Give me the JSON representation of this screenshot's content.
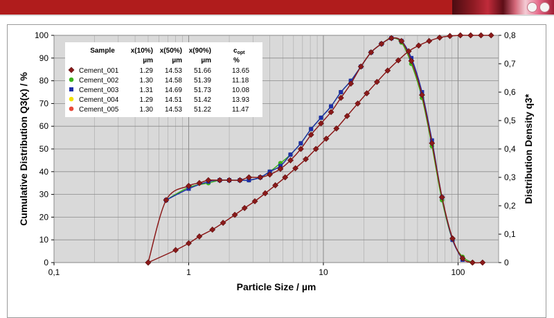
{
  "colors": {
    "header_bar": "#b01c1c",
    "plot_bg": "#d9d9d9",
    "series": [
      "#8b1a1a",
      "#3cb21c",
      "#1f2fa8",
      "#f2e000",
      "#e84a3a"
    ],
    "markers": [
      "diamond",
      "circle",
      "square",
      "circle",
      "circle"
    ]
  },
  "chart_data": {
    "type": "line",
    "xlabel": "Particle Size / µm",
    "ylabel_left": "Cumulative Distribution Q3(x) / %",
    "ylabel_right": "Distribution Density q3*",
    "x_scale": "log",
    "xlim": [
      0.1,
      200
    ],
    "ylim_left": [
      0,
      100
    ],
    "ylim_right": [
      0,
      0.8
    ],
    "x_tick_labels": [
      "0,1",
      "1",
      "10",
      "100"
    ],
    "y_left_tick_labels": [
      "0",
      "10",
      "20",
      "30",
      "40",
      "50",
      "60",
      "70",
      "80",
      "90",
      "100"
    ],
    "y_right_tick_labels": [
      "0",
      "0,1",
      "0,2",
      "0,3",
      "0,4",
      "0,5",
      "0,6",
      "0,7",
      "0,8"
    ],
    "grid": true,
    "legend_table": {
      "headers": [
        "Sample",
        "x(10%)",
        "x(50%)",
        "x(90%)",
        "c"
      ],
      "header_sub": "opt",
      "units": [
        "",
        "µm",
        "µm",
        "µm",
        "%"
      ],
      "rows": [
        [
          "Cement_001",
          "1.29",
          "14.53",
          "51.66",
          "13.65"
        ],
        [
          "Cement_002",
          "1.30",
          "14.58",
          "51.39",
          "11.18"
        ],
        [
          "Cement_003",
          "1.31",
          "14.69",
          "51.73",
          "10.08"
        ],
        [
          "Cement_004",
          "1.29",
          "14.51",
          "51.42",
          "13.93"
        ],
        [
          "Cement_005",
          "1.30",
          "14.53",
          "51.22",
          "11.47"
        ]
      ]
    },
    "cumulative_q3": {
      "axis": "left",
      "x": [
        0.5,
        0.8,
        1.0,
        1.2,
        1.5,
        1.8,
        2.2,
        2.6,
        3.1,
        3.7,
        4.4,
        5.2,
        6.2,
        7.4,
        8.8,
        10.5,
        12.5,
        15,
        18,
        21,
        25,
        30,
        36,
        43,
        51,
        61,
        73,
        87,
        104,
        124,
        148,
        176
      ],
      "y": [
        0,
        5.5,
        8.5,
        11.5,
        14.5,
        17.5,
        21,
        24,
        27,
        30.5,
        34,
        37.5,
        41.5,
        45.5,
        50,
        54.5,
        59,
        64.5,
        70,
        74.5,
        79.5,
        84.5,
        89,
        93,
        95.5,
        97.5,
        99,
        99.7,
        100,
        100,
        100,
        100
      ]
    },
    "density_q3": {
      "axis": "right",
      "series": [
        {
          "name": "Cement_001",
          "x": [
            0.5,
            0.68,
            1.0,
            1.2,
            1.4,
            1.7,
            2.0,
            2.4,
            2.8,
            3.4,
            4.0,
            4.8,
            5.7,
            6.8,
            8.1,
            9.6,
            11.4,
            13.5,
            16,
            19,
            22.6,
            27,
            32,
            38,
            45,
            54,
            64,
            76,
            91,
            108,
            128,
            152
          ],
          "y": [
            0,
            0.22,
            0.27,
            0.28,
            0.29,
            0.29,
            0.29,
            0.29,
            0.3,
            0.3,
            0.31,
            0.33,
            0.36,
            0.4,
            0.45,
            0.49,
            0.53,
            0.58,
            0.63,
            0.69,
            0.74,
            0.77,
            0.79,
            0.78,
            0.71,
            0.59,
            0.42,
            0.23,
            0.085,
            0.015,
            0,
            0
          ]
        },
        {
          "name": "Cement_002",
          "x": [
            0.68,
            1.0,
            1.4,
            1.7,
            2.0,
            2.4,
            2.8,
            3.4,
            4.0,
            4.8,
            5.7,
            6.8,
            8.1,
            9.6,
            11.4,
            13.5,
            16,
            19,
            22.6,
            27,
            32,
            38,
            45,
            54,
            64,
            76,
            91,
            108,
            128
          ],
          "y": [
            0.22,
            0.265,
            0.28,
            0.29,
            0.29,
            0.29,
            0.29,
            0.3,
            0.32,
            0.35,
            0.38,
            0.42,
            0.47,
            0.51,
            0.55,
            0.6,
            0.64,
            0.69,
            0.74,
            0.77,
            0.79,
            0.775,
            0.7,
            0.58,
            0.41,
            0.22,
            0.08,
            0.02,
            0
          ]
        },
        {
          "name": "Cement_003",
          "x": [
            0.68,
            1.0,
            1.4,
            1.7,
            2.0,
            2.4,
            2.8,
            3.4,
            4.0,
            4.8,
            5.7,
            6.8,
            8.1,
            9.6,
            11.4,
            13.5,
            16,
            19,
            22.6,
            27,
            32,
            38,
            45,
            54,
            64,
            76,
            91,
            108
          ],
          "y": [
            0.22,
            0.26,
            0.285,
            0.29,
            0.29,
            0.29,
            0.29,
            0.3,
            0.32,
            0.34,
            0.38,
            0.42,
            0.47,
            0.51,
            0.55,
            0.6,
            0.64,
            0.69,
            0.74,
            0.77,
            0.79,
            0.78,
            0.72,
            0.6,
            0.43,
            0.23,
            0.08,
            0.01
          ]
        }
      ]
    }
  }
}
